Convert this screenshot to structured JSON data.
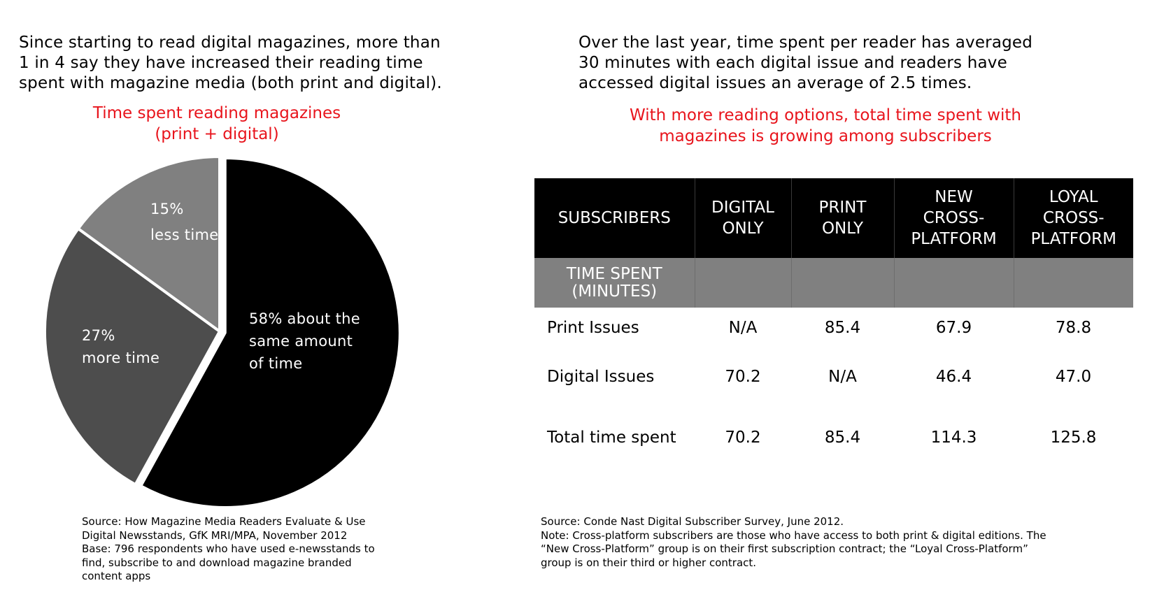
{
  "left_panel": {
    "intro": "Since starting to read digital magazines, more than\n1 in 4 say they have increased their reading time\nspent with magazine media (both print and digital).",
    "chart_title": "Time spent reading magazines\n(print + digital)",
    "source": "Source: How Magazine Media Readers Evaluate & Use\nDigital Newsstands, GfK MRI/MPA, November 2012\nBase: 796 respondents who have used e-newsstands to\nfind, subscribe to and download magazine branded\ncontent apps"
  },
  "right_panel": {
    "intro": "Over the last year, time spent per reader has averaged\n30 minutes with each digital issue and readers have\naccessed digital issues an average of 2.5 times.",
    "table_title": "With more reading options, total time spent with\nmagazines is growing among subscribers",
    "source": "Source: Conde Nast Digital Subscriber Survey, June 2012.\nNote: Cross-platform subscribers are those who have access to both print & digital editions. The\n“New Cross-Platform” group is on their first subscription contract; the “Loyal Cross-Platform”\ngroup is on their third or higher contract."
  },
  "chart_data": [
    {
      "type": "pie",
      "title": "Time spent reading magazines\n(print + digital)",
      "slices": [
        {
          "label": "58% about the\nsame  amount\nof time",
          "value": 58,
          "color": "#000000"
        },
        {
          "label": "27%\nmore time",
          "value": 27,
          "color": "#4d4d4d"
        },
        {
          "label": "15%\nless time",
          "value": 15,
          "color": "#808080"
        }
      ]
    },
    {
      "type": "table",
      "title": "With more reading options, total time spent with\nmagazines is growing among subscribers",
      "columns": [
        "SUBSCRIBERS",
        "DIGITAL\nONLY",
        "PRINT\nONLY",
        "NEW\nCROSS-\nPLATFORM",
        "LOYAL\nCROSS-\nPLATFORM"
      ],
      "subheader": "TIME SPENT\n(MINUTES)",
      "rows": [
        {
          "label": "Print Issues",
          "values": [
            "N/A",
            "85.4",
            "67.9",
            "78.8"
          ]
        },
        {
          "label": "Digital Issues",
          "values": [
            "70.2",
            "N/A",
            "46.4",
            "47.0"
          ]
        },
        {
          "label": "Total time spent",
          "values": [
            "70.2",
            "85.4",
            "114.3",
            "125.8"
          ]
        }
      ]
    }
  ]
}
